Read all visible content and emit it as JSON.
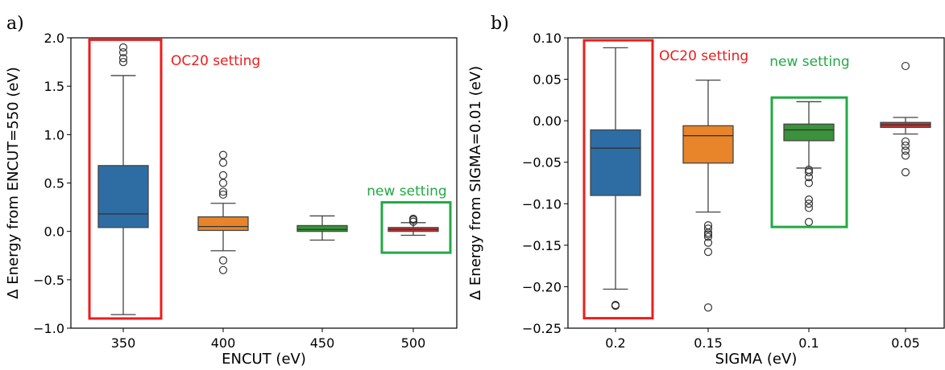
{
  "chart_data": [
    {
      "type": "box",
      "panel_label": "a)",
      "xlabel": "ENCUT (eV)",
      "ylabel": "Δ Energy from ENCUT=550 (eV)",
      "ylim": [
        -1.0,
        2.0
      ],
      "yticks": [
        "−1.0",
        "−0.5",
        "0.0",
        "0.5",
        "1.0",
        "1.5",
        "2.0"
      ],
      "ytick_values": [
        -1.0,
        -0.5,
        0.0,
        0.5,
        1.0,
        1.5,
        2.0
      ],
      "categories": [
        "350",
        "400",
        "450",
        "500"
      ],
      "boxes": [
        {
          "category": "350",
          "color": "#2e6da4",
          "whisker_low": -0.86,
          "q1": 0.04,
          "median": 0.18,
          "q3": 0.68,
          "whisker_high": 1.61,
          "outliers": [
            1.75,
            1.79,
            1.85,
            1.9
          ]
        },
        {
          "category": "400",
          "color": "#e8842a",
          "whisker_low": -0.2,
          "q1": 0.01,
          "median": 0.05,
          "q3": 0.15,
          "whisker_high": 0.29,
          "outliers": [
            -0.4,
            -0.3,
            0.38,
            0.41,
            0.5,
            0.58,
            0.71,
            0.79
          ]
        },
        {
          "category": "450",
          "color": "#3a923a",
          "whisker_low": -0.09,
          "q1": 0.0,
          "median": 0.02,
          "q3": 0.06,
          "whisker_high": 0.16,
          "outliers": []
        },
        {
          "category": "500",
          "color": "#cc3333",
          "whisker_low": -0.04,
          "q1": 0.0,
          "median": 0.02,
          "q3": 0.04,
          "whisker_high": 0.09,
          "outliers": [
            0.1,
            0.12,
            0.13
          ]
        }
      ],
      "highlights": [
        {
          "label": "OC20 setting",
          "color": "#ee1c1c",
          "category": "350",
          "y_range": [
            -0.9,
            1.98
          ]
        },
        {
          "label": "new setting",
          "color": "#22aa44",
          "category": "500",
          "y_range": [
            -0.22,
            0.3
          ]
        }
      ]
    },
    {
      "type": "box",
      "panel_label": "b)",
      "xlabel": "SIGMA (eV)",
      "ylabel": "Δ Energy from SIGMA=0.01 (eV)",
      "ylim": [
        -0.25,
        0.1
      ],
      "yticks": [
        "−0.25",
        "−0.20",
        "−0.15",
        "−0.10",
        "−0.05",
        "0.00",
        "0.05",
        "0.10"
      ],
      "ytick_values": [
        -0.25,
        -0.2,
        -0.15,
        -0.1,
        -0.05,
        0.0,
        0.05,
        0.1
      ],
      "categories": [
        "0.2",
        "0.15",
        "0.1",
        "0.05"
      ],
      "boxes": [
        {
          "category": "0.2",
          "color": "#2e6da4",
          "whisker_low": -0.203,
          "q1": -0.09,
          "median": -0.033,
          "q3": -0.011,
          "whisker_high": 0.088,
          "outliers": [
            -0.222,
            -0.223
          ]
        },
        {
          "category": "0.15",
          "color": "#e8842a",
          "whisker_low": -0.11,
          "q1": -0.051,
          "median": -0.018,
          "q3": -0.006,
          "whisker_high": 0.049,
          "outliers": [
            -0.126,
            -0.13,
            -0.135,
            -0.137,
            -0.14,
            -0.147,
            -0.158,
            -0.225
          ]
        },
        {
          "category": "0.1",
          "color": "#3a923a",
          "whisker_low": -0.057,
          "q1": -0.024,
          "median": -0.011,
          "q3": -0.004,
          "whisker_high": 0.023,
          "outliers": [
            -0.059,
            -0.062,
            -0.068,
            -0.075,
            -0.095,
            -0.1,
            -0.105,
            -0.122
          ]
        },
        {
          "category": "0.05",
          "color": "#cc3333",
          "whisker_low": -0.016,
          "q1": -0.008,
          "median": -0.005,
          "q3": -0.002,
          "whisker_high": 0.004,
          "outliers": [
            -0.025,
            -0.03,
            -0.036,
            -0.042,
            -0.062,
            0.066
          ]
        }
      ],
      "highlights": [
        {
          "label": "OC20 setting",
          "color": "#ee1c1c",
          "category": "0.2",
          "y_range": [
            -0.238,
            0.097
          ]
        },
        {
          "label": "new setting",
          "color": "#22aa44",
          "category": "0.1",
          "y_range": [
            -0.128,
            0.028
          ]
        }
      ]
    }
  ]
}
